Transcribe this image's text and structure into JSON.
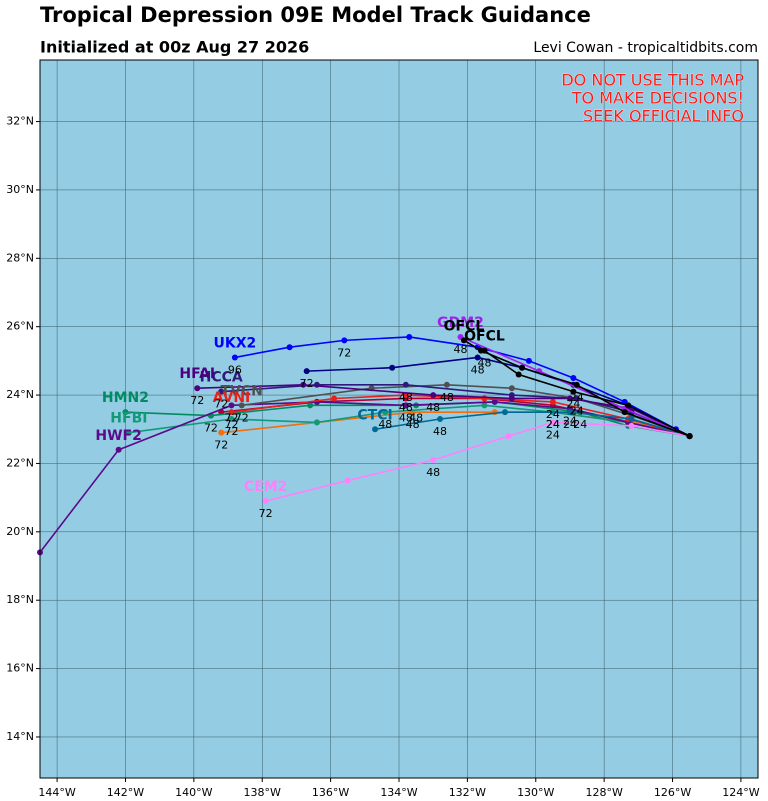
{
  "chart_data": {
    "type": "map",
    "title": "Tropical Depression 09E Model Track Guidance",
    "subtitle": "Initialized at 00z Aug 27 2026",
    "credit": "Levi Cowan - tropicaltidbits.com",
    "annotation": [
      "DO NOT USE THIS MAP",
      "TO MAKE DECISIONS!",
      "SEEK OFFICIAL INFO"
    ],
    "xlim": [
      -144.5,
      -123.5
    ],
    "ylim": [
      12.8,
      33.8
    ],
    "xticks": [
      {
        "value": -144,
        "label": "144°W"
      },
      {
        "value": -142,
        "label": "142°W"
      },
      {
        "value": -140,
        "label": "140°W"
      },
      {
        "value": -138,
        "label": "138°W"
      },
      {
        "value": -136,
        "label": "136°W"
      },
      {
        "value": -134,
        "label": "134°W"
      },
      {
        "value": -132,
        "label": "132°W"
      },
      {
        "value": -130,
        "label": "130°W"
      },
      {
        "value": -128,
        "label": "128°W"
      },
      {
        "value": -126,
        "label": "126°W"
      },
      {
        "value": -124,
        "label": "124°W"
      }
    ],
    "yticks": [
      {
        "value": 14,
        "label": "14°N"
      },
      {
        "value": 16,
        "label": "16°N"
      },
      {
        "value": 18,
        "label": "18°N"
      },
      {
        "value": 20,
        "label": "20°N"
      },
      {
        "value": 22,
        "label": "22°N"
      },
      {
        "value": 24,
        "label": "24°N"
      },
      {
        "value": 26,
        "label": "26°N"
      },
      {
        "value": 28,
        "label": "28°N"
      },
      {
        "value": 30,
        "label": "30°N"
      },
      {
        "value": 32,
        "label": "32°N"
      }
    ],
    "grid": true,
    "series": [
      {
        "color": "#b0003a",
        "lon": [
          -125.5,
          -127.2,
          -129.5,
          -131.5,
          -133.8,
          -136.4,
          -139.2
        ],
        "lat": [
          22.8,
          23.2,
          23.7,
          23.9,
          23.9,
          23.8,
          23.5
        ],
        "hours": [
          null,
          null,
          null,
          null,
          null,
          null,
          null
        ]
      },
      {
        "color": "#f07010",
        "lon": [
          -125.5,
          -127.2,
          -129.5,
          -131.2,
          -133.6,
          -136.4,
          -139.2
        ],
        "lat": [
          22.8,
          23.2,
          23.5,
          23.5,
          23.5,
          23.2,
          22.9
        ],
        "hours": [
          null,
          null,
          24,
          null,
          48,
          null,
          72
        ]
      },
      {
        "name": "HMN2",
        "color": "#008b60",
        "lon": [
          -125.5,
          -127.3,
          -128.7,
          -131.2,
          -133.5,
          -136.6,
          -139.5,
          -142.0
        ],
        "lat": [
          22.8,
          23.1,
          23.5,
          23.8,
          23.7,
          23.7,
          23.4,
          23.5
        ],
        "hours": [
          null,
          null,
          24,
          null,
          48,
          null,
          72,
          null
        ]
      },
      {
        "name": "HFBI",
        "color": "#13997a",
        "lon": [
          -125.5,
          -127.3,
          -129.5,
          -131.5,
          -134.4,
          -136.4,
          -138.9,
          -141.9
        ],
        "lat": [
          22.8,
          23.2,
          23.5,
          23.7,
          23.5,
          23.2,
          23.3,
          22.9
        ],
        "hours": [
          null,
          null,
          24,
          null,
          48,
          null,
          72,
          null
        ]
      },
      {
        "name": "HWF2",
        "color": "#5a0a8a",
        "lon": [
          -125.5,
          -127.3,
          -129.0,
          -131.2,
          -133.8,
          -136.4,
          -138.9,
          -142.2,
          -144.5
        ],
        "lat": [
          22.8,
          23.2,
          23.6,
          23.8,
          23.7,
          23.8,
          23.7,
          22.4,
          19.4
        ],
        "hours": [
          null,
          null,
          24,
          null,
          48,
          null,
          72,
          null,
          null
        ]
      },
      {
        "name": "TVCN",
        "color": "#505050",
        "lon": [
          -125.5,
          -127.2,
          -128.8,
          -130.7,
          -132.6,
          -134.8,
          -138.6
        ],
        "lat": [
          22.8,
          23.4,
          23.9,
          24.2,
          24.3,
          24.2,
          23.7
        ],
        "hours": [
          null,
          null,
          24,
          null,
          48,
          null,
          72
        ]
      },
      {
        "name": "AVNI",
        "color": "#e8201a",
        "lon": [
          -125.5,
          -127.3,
          -129.5,
          -131.5,
          -133.8,
          -135.9,
          -138.9
        ],
        "lat": [
          22.8,
          23.3,
          23.8,
          23.9,
          24.0,
          23.9,
          23.5
        ],
        "hours": [
          null,
          null,
          24,
          null,
          48,
          null,
          72
        ]
      },
      {
        "name": "HCCA",
        "color": "#2e1a7a",
        "lon": [
          -125.5,
          -127.2,
          -128.8,
          -130.7,
          -133.8,
          -136.4,
          -139.2
        ],
        "lat": [
          22.8,
          23.5,
          23.9,
          24.0,
          24.3,
          24.3,
          24.1
        ],
        "hours": [
          null,
          null,
          24,
          null,
          48,
          null,
          72
        ]
      },
      {
        "name": "HFAI",
        "color": "#4b0082",
        "lon": [
          -125.5,
          -127.2,
          -129.0,
          -130.7,
          -133.0,
          -136.8,
          -139.9
        ],
        "lat": [
          22.8,
          23.6,
          23.9,
          23.9,
          24.0,
          24.3,
          24.2
        ],
        "hours": [
          null,
          null,
          null,
          null,
          48,
          null,
          72
        ]
      },
      {
        "name": "CTCI",
        "color": "#006994",
        "lon": [
          -125.5,
          -127.2,
          -129.0,
          -130.9,
          -132.8,
          -134.7
        ],
        "lat": [
          22.8,
          23.3,
          23.5,
          23.5,
          23.3,
          23.0
        ],
        "hours": [
          null,
          null,
          24,
          null,
          48,
          null
        ]
      },
      {
        "name": "CEM2",
        "color": "#ff80ff",
        "lon": [
          -125.5,
          -127.2,
          -129.5,
          -130.8,
          -133.0,
          -135.5,
          -137.9
        ],
        "lat": [
          22.8,
          23.1,
          23.2,
          22.8,
          22.1,
          21.5,
          20.9
        ],
        "hours": [
          null,
          null,
          24,
          null,
          48,
          null,
          72
        ]
      },
      {
        "color": "#000080",
        "lon": [
          -125.5,
          -127.3,
          -128.9,
          -130.4,
          -131.7,
          -134.2,
          -136.7
        ],
        "lat": [
          22.8,
          23.7,
          24.3,
          24.8,
          25.1,
          24.8,
          24.7
        ],
        "hours": [
          null,
          null,
          null,
          null,
          48,
          null,
          72
        ]
      },
      {
        "name": "UKX2",
        "color": "#0000ff",
        "lon": [
          -125.5,
          -125.9,
          -127.4,
          -128.9,
          -130.2,
          -131.7,
          -133.7,
          -135.6,
          -137.2,
          -138.8
        ],
        "lat": [
          22.8,
          23.0,
          23.8,
          24.5,
          25.0,
          25.4,
          25.7,
          25.6,
          25.4,
          25.1
        ],
        "hours": [
          null,
          null,
          null,
          null,
          null,
          null,
          null,
          72,
          null,
          96
        ]
      },
      {
        "name": "GDM2",
        "color": "#a020f0",
        "lon": [
          -125.5,
          -127.4,
          -129.9,
          -132.2
        ],
        "lat": [
          22.8,
          23.6,
          24.7,
          25.7
        ],
        "hours": [
          null,
          null,
          null,
          48
        ]
      },
      {
        "name": "OFCL",
        "color": "#000000",
        "lon": [
          -125.5,
          -127.4,
          -128.8,
          -130.4,
          -131.6,
          -132.1
        ],
        "lat": [
          22.8,
          23.5,
          24.3,
          24.8,
          25.3,
          25.6
        ],
        "hours": [
          null,
          null,
          24,
          null,
          null,
          null
        ]
      },
      {
        "name": "OFCL",
        "color": "#000000",
        "lon": [
          -125.5,
          -127.3,
          -128.9,
          -130.5,
          -131.5
        ],
        "lat": [
          22.8,
          23.7,
          24.1,
          24.6,
          25.3
        ],
        "hours": [
          null,
          null,
          24,
          null,
          48
        ]
      }
    ]
  }
}
